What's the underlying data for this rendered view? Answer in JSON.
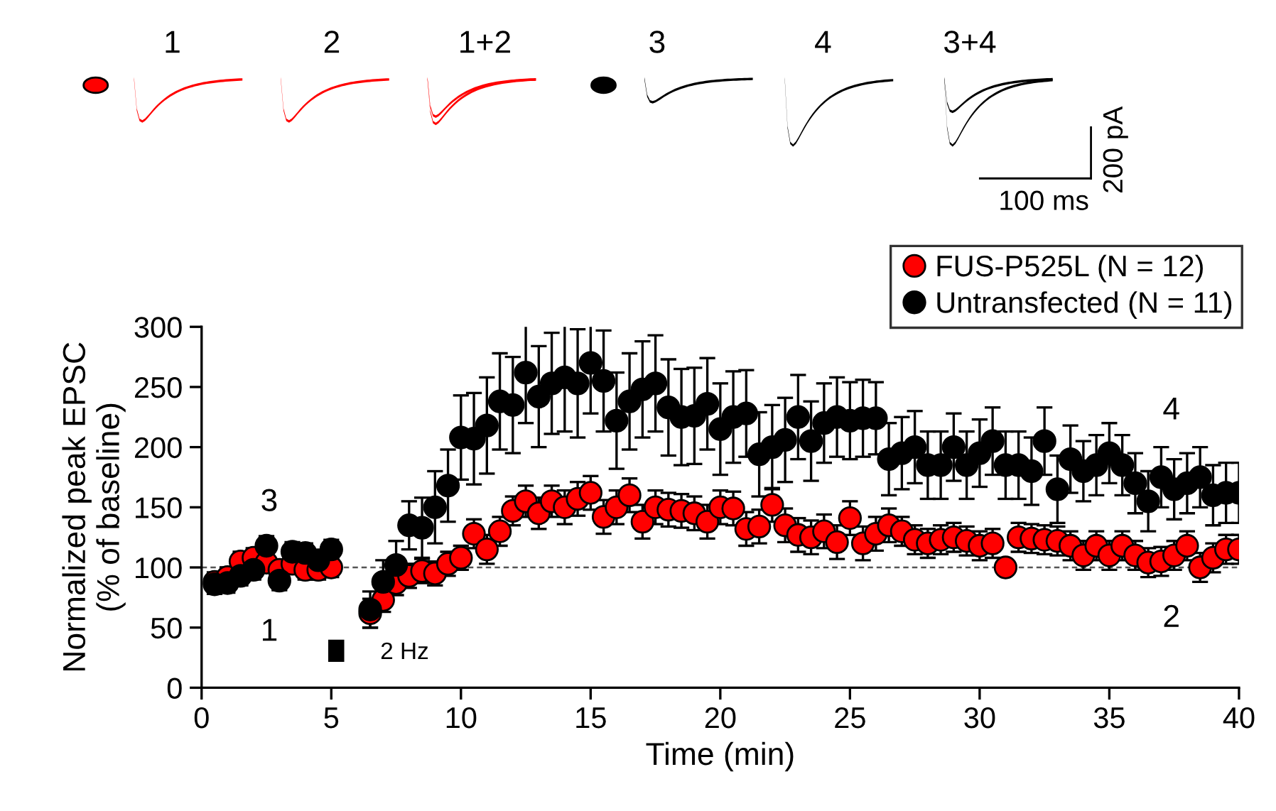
{
  "chart_data": {
    "type": "scatter",
    "xlabel": "Time (min)",
    "ylabel": "Normalized peak EPSC\n(% of baseline)",
    "x": [
      0.5,
      1,
      1.5,
      2,
      2.5,
      3,
      3.5,
      4,
      4.5,
      5,
      6.5,
      7,
      7.5,
      8,
      8.5,
      9,
      9.5,
      10,
      10.5,
      11,
      11.5,
      12,
      12.5,
      13,
      13.5,
      14,
      14.5,
      15,
      15.5,
      16,
      16.5,
      17,
      17.5,
      18,
      18.5,
      19,
      19.5,
      20,
      20.5,
      21,
      21.5,
      22,
      22.5,
      23,
      23.5,
      24,
      24.5,
      25,
      25.5,
      26,
      26.5,
      27,
      27.5,
      28,
      28.5,
      29,
      29.5,
      30,
      30.5,
      31,
      31.5,
      32,
      32.5,
      33,
      33.5,
      34,
      34.5,
      35,
      35.5,
      36,
      36.5,
      37,
      37.5,
      38,
      38.5,
      39,
      39.5,
      40
    ],
    "series": [
      {
        "name": "FUS-P525L (N = 12)",
        "color": "#ff0000",
        "values": [
          88,
          92,
          105,
          108,
          104,
          98,
          103,
          98,
          98,
          100,
          62,
          73,
          87,
          93,
          97,
          95,
          103,
          108,
          128,
          115,
          130,
          147,
          155,
          145,
          155,
          150,
          157,
          162,
          142,
          150,
          160,
          138,
          150,
          148,
          147,
          145,
          138,
          150,
          149,
          132,
          134,
          152,
          135,
          127,
          125,
          130,
          121,
          141,
          120,
          128,
          135,
          130,
          123,
          120,
          123,
          125,
          122,
          118,
          120,
          100,
          125,
          124,
          123,
          122,
          118,
          110,
          118,
          110,
          118,
          110,
          104,
          105,
          110,
          118,
          100,
          108,
          115,
          115
        ],
        "errors": [
          8,
          8,
          8,
          8,
          8,
          8,
          8,
          8,
          8,
          8,
          12,
          10,
          10,
          10,
          10,
          10,
          10,
          10,
          12,
          12,
          12,
          12,
          13,
          13,
          13,
          14,
          14,
          14,
          14,
          14,
          14,
          14,
          14,
          14,
          14,
          14,
          14,
          14,
          14,
          14,
          14,
          14,
          14,
          14,
          14,
          14,
          14,
          14,
          14,
          14,
          14,
          12,
          12,
          12,
          12,
          12,
          12,
          12,
          12,
          null,
          12,
          12,
          12,
          12,
          12,
          12,
          12,
          12,
          12,
          12,
          12,
          12,
          12,
          12,
          12,
          12,
          12,
          12
        ]
      },
      {
        "name": "Untransfected (N = 11)",
        "color": "#000000",
        "values": [
          86,
          87,
          93,
          98,
          118,
          89,
          113,
          112,
          106,
          115,
          65,
          88,
          102,
          135,
          133,
          150,
          168,
          208,
          207,
          218,
          238,
          235,
          262,
          242,
          253,
          258,
          253,
          270,
          255,
          222,
          238,
          248,
          253,
          233,
          225,
          226,
          236,
          215,
          225,
          228,
          194,
          200,
          206,
          225,
          205,
          220,
          225,
          222,
          224,
          224,
          190,
          195,
          200,
          185,
          185,
          200,
          185,
          195,
          205,
          185,
          185,
          180,
          205,
          165,
          190,
          180,
          185,
          195,
          185,
          170,
          155,
          175,
          165,
          170,
          175,
          160,
          162,
          162
        ],
        "errors": [
          8,
          8,
          8,
          8,
          8,
          8,
          8,
          8,
          8,
          8,
          15,
          18,
          20,
          20,
          25,
          30,
          30,
          35,
          38,
          40,
          40,
          40,
          42,
          42,
          42,
          45,
          45,
          42,
          42,
          40,
          40,
          40,
          40,
          40,
          40,
          40,
          38,
          38,
          38,
          36,
          35,
          35,
          35,
          35,
          33,
          33,
          33,
          32,
          32,
          30,
          30,
          30,
          30,
          28,
          28,
          28,
          28,
          28,
          28,
          28,
          28,
          28,
          28,
          28,
          28,
          25,
          25,
          25,
          25,
          25,
          25,
          25,
          25,
          25,
          25,
          25,
          25,
          25
        ]
      }
    ],
    "xlim": [
      0,
      40
    ],
    "ylim": [
      0,
      300
    ],
    "xticks": [
      0,
      5,
      10,
      15,
      20,
      25,
      30,
      35,
      40
    ],
    "yticks": [
      0,
      50,
      100,
      150,
      200,
      250,
      300
    ],
    "marker": "circle",
    "legend": "top right",
    "grid": false,
    "ref_lines": [
      {
        "axis": "y",
        "value": 100,
        "line_style": "dashed",
        "color": "#555555"
      }
    ],
    "annotations": [
      "1",
      "3",
      "4",
      "2",
      "2 Hz",
      "1",
      "2",
      "1+2",
      "3",
      "4",
      "3+4",
      "200 pA",
      "100 ms"
    ]
  }
}
